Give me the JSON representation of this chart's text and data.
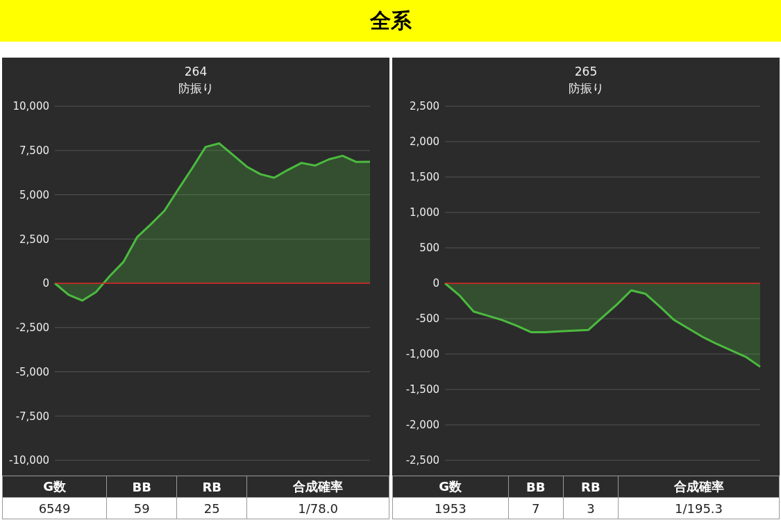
{
  "chart_data": [
    {
      "type": "area",
      "title": "264",
      "subtitle": "防振り",
      "categories": [
        null,
        null,
        null,
        null,
        null,
        null,
        null,
        null,
        null,
        null,
        null,
        null,
        null,
        null,
        null,
        null,
        null,
        null,
        null,
        null,
        null,
        null,
        null,
        null
      ],
      "series": [
        {
          "color": "#4cbb3f",
          "values": [
            0,
            -650,
            -980,
            -500,
            400,
            1200,
            2600,
            3330,
            4100,
            5300,
            6470,
            7700,
            7900,
            7250,
            6590,
            6160,
            5960,
            6400,
            6800,
            6650,
            7000,
            7200,
            6850,
            6860
          ]
        }
      ],
      "ylim": [
        -10000,
        10000
      ],
      "yticks": [
        {
          "value": -10000,
          "label": "-10,000"
        },
        {
          "value": -7500,
          "label": "-7,500"
        },
        {
          "value": -5000,
          "label": "-5,000"
        },
        {
          "value": -2500,
          "label": "-2,500"
        },
        0,
        {
          "value": 2500,
          "label": "2,500"
        },
        {
          "value": 5000,
          "label": "5,000"
        },
        {
          "value": 7500,
          "label": "7,500"
        },
        {
          "value": 10000,
          "label": "10,000"
        }
      ],
      "grid": "y",
      "tick_labels": "y",
      "legend": false,
      "ref_lines": [
        {
          "axis": "y",
          "value": 0,
          "color": "#e02020"
        }
      ],
      "annotations": [
        "全系",
        "G数",
        "BB",
        "RB",
        "合成確率",
        "6549",
        "59",
        "25",
        "1/78.0"
      ]
    },
    {
      "type": "area",
      "title": "265",
      "subtitle": "防振り",
      "categories": [
        null,
        null,
        null,
        null,
        null,
        null,
        null,
        null,
        null,
        null,
        null,
        null,
        null,
        null,
        null,
        null,
        null,
        null,
        null,
        null,
        null,
        null,
        null
      ],
      "series": [
        {
          "color": "#4cbb3f",
          "values": [
            0,
            -170,
            -400,
            -460,
            -520,
            -600,
            -690,
            -690,
            -680,
            -670,
            -660,
            -480,
            -300,
            -100,
            -150,
            -330,
            -520,
            -640,
            -760,
            -860,
            -950,
            -1040,
            -1180
          ]
        }
      ],
      "ylim": [
        -2500,
        2500
      ],
      "yticks": [
        {
          "value": -2500,
          "label": "-2,500"
        },
        {
          "value": -2000,
          "label": "-2,000"
        },
        {
          "value": -1500,
          "label": "-1,500"
        },
        {
          "value": -1000,
          "label": "-1,000"
        },
        -500,
        0,
        500,
        {
          "value": 1000,
          "label": "1,000"
        },
        {
          "value": 1500,
          "label": "1,500"
        },
        {
          "value": 2000,
          "label": "2,000"
        },
        {
          "value": 2500,
          "label": "2,500"
        }
      ],
      "grid": "y",
      "tick_labels": "y",
      "legend": false,
      "ref_lines": [
        {
          "axis": "y",
          "value": 0,
          "color": "#e02020"
        }
      ],
      "annotations": [
        "G数",
        "BB",
        "RB",
        "合成確率",
        "1953",
        "7",
        "3",
        "1/195.3"
      ]
    }
  ]
}
